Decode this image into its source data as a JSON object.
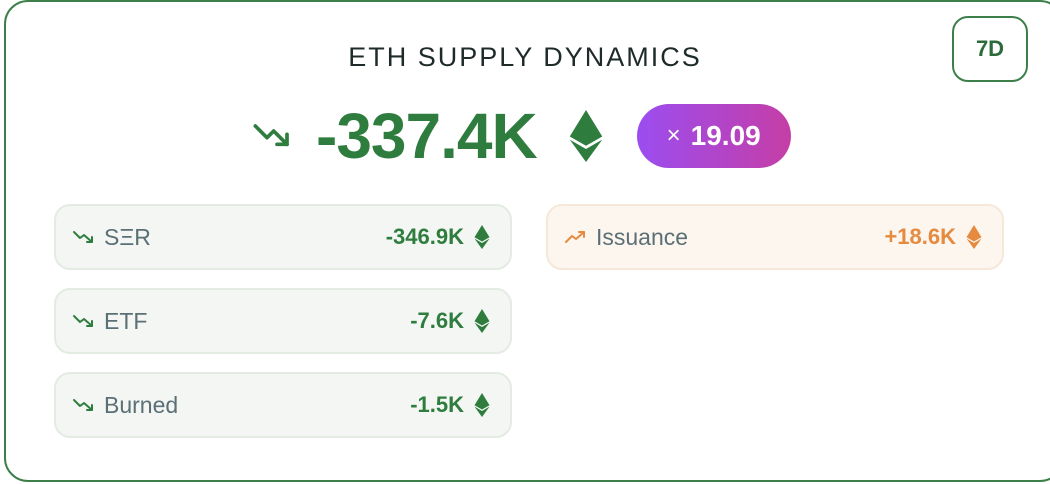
{
  "card": {
    "title": "ETH SUPPLY DYNAMICS",
    "period_button": "7D",
    "total": {
      "trend_icon": "trending-down-icon",
      "value": "-337.4K",
      "unit_icon": "eth-icon"
    },
    "multiplier": {
      "symbol": "×",
      "value": "19.09"
    },
    "left_rows": [
      {
        "label": "SΞR",
        "value": "-346.9K",
        "trend_icon": "trending-down-icon",
        "unit_icon": "eth-icon"
      },
      {
        "label": "ETF",
        "value": "-7.6K",
        "trend_icon": "trending-down-icon",
        "unit_icon": "eth-icon"
      },
      {
        "label": "Burned",
        "value": "-1.5K",
        "trend_icon": "trending-down-icon",
        "unit_icon": "eth-icon"
      }
    ],
    "right_rows": [
      {
        "label": "Issuance",
        "value": "+18.6K",
        "trend_icon": "trending-up-icon",
        "unit_icon": "eth-icon"
      }
    ]
  },
  "colors": {
    "border": "#3d7f4b",
    "positive_green": "#2e7d3e",
    "issuance_orange": "#e58a3f",
    "multiplier_gradient_start": "#9b4df0",
    "multiplier_gradient_end": "#c53ea6"
  }
}
